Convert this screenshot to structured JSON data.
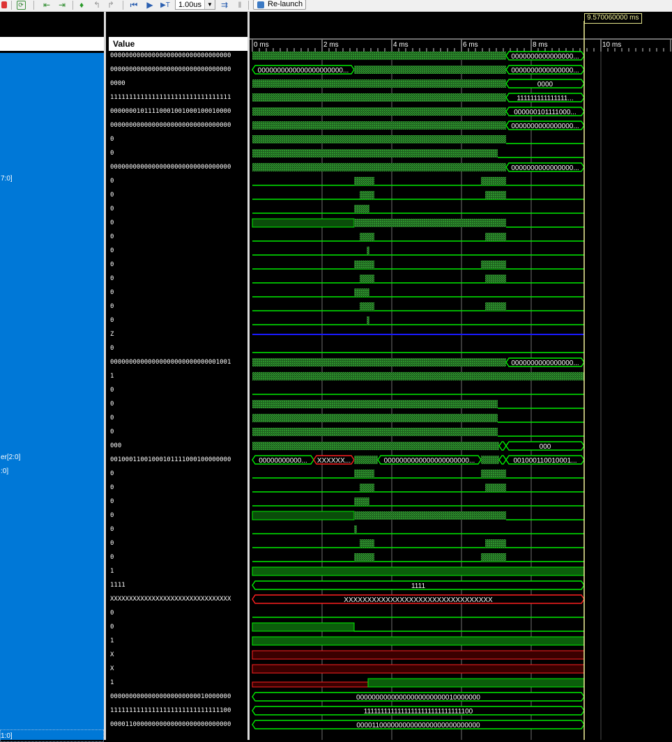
{
  "toolbar": {
    "timescale_value": "1.00us",
    "relaunch_label": "Re-launch",
    "icons": [
      "refresh-icon",
      "step-back-icon",
      "step-forward-icon",
      "marker-icon",
      "goto-previous-icon",
      "goto-next-icon",
      "restart-icon",
      "run-icon",
      "run-for-icon",
      "timescale-dropdown-icon",
      "break-icon",
      "pause-icon",
      "relaunch-icon"
    ]
  },
  "names_panel": {
    "visible_labels": [
      {
        "row": 8,
        "text": "7:0]"
      },
      {
        "row": 29,
        "text": "er[2:0]"
      },
      {
        "row": 30,
        "text": ":0]"
      },
      {
        "row": 48,
        "text": "1:0]"
      }
    ]
  },
  "values_panel": {
    "header": "Value",
    "values": [
      "00000000000000000000000000000000",
      "00000000000000000000000000000000",
      "0000",
      "11111111111111111111111111111111",
      "00000001011110001001000100010000",
      "00000000000000000000000000000000",
      "0",
      "0",
      "00000000000000000000000000000000",
      "0",
      "0",
      "0",
      "0",
      "0",
      "0",
      "0",
      "0",
      "0",
      "0",
      "0",
      "Z",
      "0",
      "00000000000000000000000000001001",
      "1",
      "0",
      "0",
      "0",
      "0",
      "000",
      "00100011001000101111000100000000",
      "0",
      "0",
      "0",
      "0",
      "0",
      "0",
      "0",
      "1",
      "1111",
      "XXXXXXXXXXXXXXXXXXXXXXXXXXXXXXXX",
      "0",
      "0",
      "1",
      "X",
      "X",
      "1",
      "00000000000000000000000010000000",
      "11111111111111111111111111111100",
      "00001100000000000000000000000000"
    ]
  },
  "timeline": {
    "cursor_time": "9.570060000 ms",
    "ticks": [
      "0 ms",
      "2 ms",
      "4 ms",
      "6 ms",
      "8 ms",
      "10 ms"
    ]
  },
  "waves": {
    "bus_labels": {
      "r0_right": "0000000000000000...",
      "r1_left": "0000000000000000000000...",
      "r1_right": "0000000000000000...",
      "r2_right": "0000",
      "r3_right": "111111111111111...",
      "r4_right": "000000101111000...",
      "r5_right": "0000000000000000...",
      "r8_right": "0000000000000000...",
      "r22_right": "0000000000000000...",
      "r28_right": "000",
      "r29_a": "00000000000...",
      "r29_b": "XXXXXX...",
      "r29_c": "0000000000000000000000...",
      "r29_d": "001000110010001...",
      "r38": "1111",
      "r39": "XXXXXXXXXXXXXXXXXXXXXXXXXXXXXXXX",
      "r46": "00000000000000000000000010000000",
      "r47": "11111111111111111111111111111100",
      "r48": "00001100000000000000000000000000"
    }
  },
  "colors": {
    "wave_green": "#00ee00",
    "x_red": "#ff2020",
    "z_blue": "#1a1aff",
    "selection_blue": "#0078d7",
    "cursor_yellow": "#f2f29a",
    "grid": "#707070"
  }
}
